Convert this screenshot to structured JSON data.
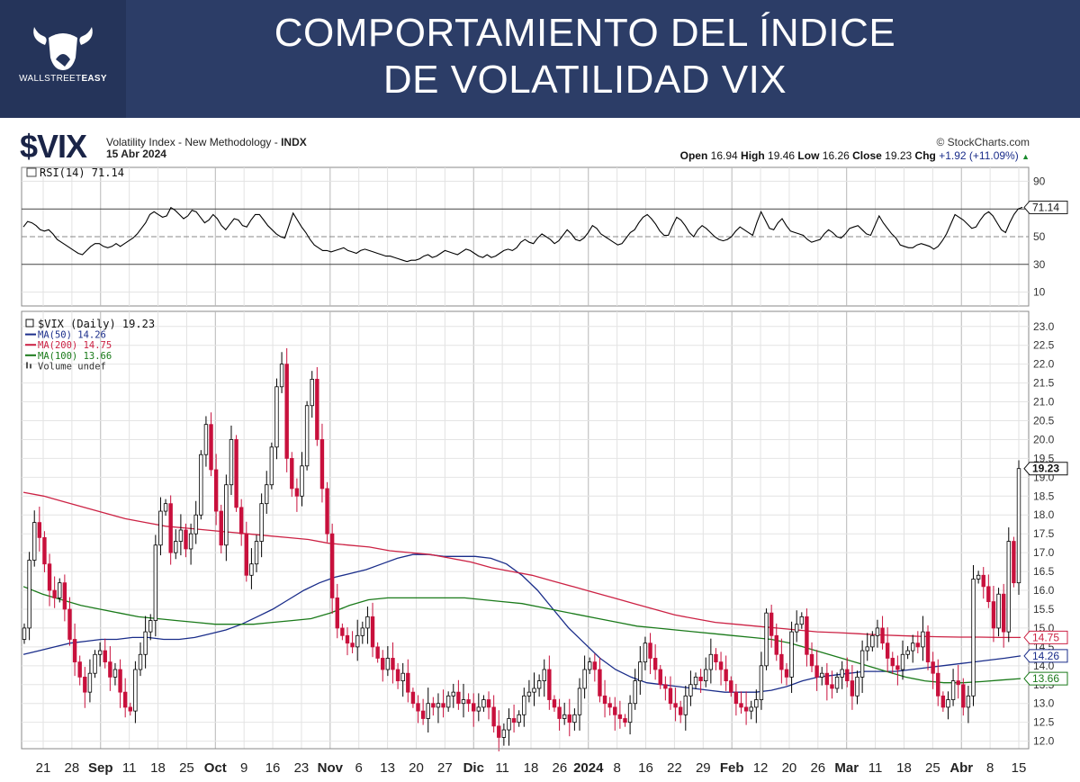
{
  "header": {
    "brand_text": "WALLSTREET",
    "brand_text_bold": "EASY",
    "title_line1": "COMPORTAMIENTO DEL ÍNDICE",
    "title_line2": "DE VOLATILIDAD VIX"
  },
  "chart_header": {
    "symbol": "$VIX",
    "description": "Volatility Index - New Methodology - ",
    "exchange": "INDX",
    "date": "15 Abr 2024",
    "credit": "© StockCharts.com",
    "open_label": "Open",
    "open": "16.94",
    "high_label": "High",
    "high": "19.46",
    "low_label": "Low",
    "low": "16.26",
    "close_label": "Close",
    "close": "19.23",
    "chg_label": "Chg",
    "chg": "+1.92 (+11.09%)"
  },
  "colors": {
    "banner": "#2c3d67",
    "up_candle": "#ffffff",
    "down_candle": "#c8103c",
    "ma50": "#1a2d8a",
    "ma200": "#cc2244",
    "ma100": "#1a7a1a",
    "rsi": "#000000"
  },
  "chart_data": [
    {
      "type": "line",
      "panel": "RSI",
      "legend": "RSI(14) 71.14",
      "ylim": [
        0,
        100
      ],
      "y_ticks": [
        10,
        30,
        50,
        70,
        90
      ],
      "current_label": "71.14",
      "values": [
        57,
        61,
        60,
        58,
        55,
        54,
        55,
        52,
        48,
        46,
        44,
        42,
        40,
        38,
        37,
        40,
        43,
        45,
        45,
        43,
        42,
        43,
        45,
        43,
        45,
        47,
        49,
        52,
        56,
        60,
        66,
        68,
        66,
        64,
        65,
        71,
        69,
        66,
        63,
        65,
        69,
        68,
        64,
        60,
        62,
        66,
        63,
        58,
        55,
        59,
        63,
        62,
        58,
        57,
        62,
        66,
        66,
        62,
        58,
        55,
        52,
        50,
        49,
        58,
        67,
        62,
        57,
        53,
        48,
        44,
        42,
        40,
        40,
        39,
        40,
        41,
        42,
        40,
        39,
        38,
        40,
        41,
        40,
        39,
        38,
        37,
        36,
        36,
        35,
        34,
        33,
        32,
        33,
        33,
        34,
        36,
        37,
        35,
        36,
        38,
        40,
        39,
        38,
        37,
        39,
        41,
        40,
        38,
        36,
        35,
        37,
        35,
        36,
        38,
        40,
        41,
        40,
        42,
        46,
        48,
        46,
        45,
        49,
        52,
        50,
        48,
        45,
        47,
        51,
        55,
        52,
        48,
        47,
        49,
        53,
        58,
        56,
        52,
        50,
        48,
        46,
        44,
        45,
        49,
        53,
        55,
        60,
        64,
        66,
        63,
        59,
        54,
        51,
        51,
        58,
        64,
        62,
        58,
        53,
        50,
        55,
        58,
        56,
        53,
        50,
        48,
        47,
        48,
        50,
        54,
        57,
        55,
        53,
        51,
        60,
        68,
        62,
        56,
        55,
        60,
        63,
        58,
        54,
        53,
        52,
        51,
        48,
        46,
        47,
        48,
        52,
        55,
        53,
        50,
        49,
        52,
        56,
        57,
        58,
        55,
        52,
        51,
        58,
        65,
        60,
        56,
        52,
        49,
        44,
        43,
        42,
        42,
        44,
        45,
        44,
        43,
        41,
        43,
        47,
        52,
        59,
        66,
        64,
        62,
        59,
        56,
        57,
        62,
        66,
        68,
        65,
        60,
        55,
        53,
        60,
        66,
        70,
        71.14
      ]
    },
    {
      "type": "candlestick",
      "panel": "price",
      "legend": "$VIX (Daily) 19.23",
      "ylim": [
        11.8,
        23.4
      ],
      "y_ticks": [
        12.0,
        12.5,
        13.0,
        13.5,
        14.0,
        14.5,
        15.0,
        15.5,
        16.0,
        16.5,
        17.0,
        17.5,
        18.0,
        18.5,
        19.0,
        19.5,
        20.0,
        20.5,
        21.0,
        21.5,
        22.0,
        22.5,
        23.0
      ],
      "x_labels": [
        "21",
        "28",
        "Sep",
        "11",
        "18",
        "25",
        "Oct",
        "9",
        "16",
        "23",
        "Nov",
        "6",
        "13",
        "20",
        "27",
        "Dic",
        "11",
        "18",
        "26",
        "2024",
        "8",
        "16",
        "22",
        "29",
        "Feb",
        "12",
        "20",
        "26",
        "Mar",
        "11",
        "18",
        "25",
        "Abr",
        "8",
        "15"
      ],
      "x_label_bold": [
        "Sep",
        "Oct",
        "Nov",
        "Dic",
        "2024",
        "Feb",
        "Mar",
        "Abr"
      ],
      "close": [
        15.0,
        16.8,
        17.8,
        17.4,
        16.7,
        16.0,
        15.8,
        16.2,
        15.5,
        14.7,
        14.1,
        13.7,
        13.3,
        13.8,
        14.3,
        14.4,
        14.1,
        13.7,
        13.9,
        13.3,
        12.9,
        12.8,
        13.9,
        14.3,
        14.9,
        15.2,
        17.2,
        18.1,
        18.3,
        17.0,
        17.3,
        17.6,
        17.1,
        17.5,
        18.0,
        19.6,
        20.4,
        19.2,
        18.1,
        17.2,
        18.8,
        20.0,
        18.2,
        17.5,
        16.4,
        16.7,
        17.3,
        18.3,
        18.8,
        19.8,
        21.4,
        22.0,
        19.5,
        18.7,
        18.5,
        19.3,
        20.9,
        21.6,
        20.0,
        18.7,
        17.5,
        15.8,
        15.0,
        14.8,
        14.6,
        14.5,
        14.8,
        15.0,
        15.3,
        14.5,
        14.2,
        13.9,
        14.2,
        13.9,
        13.6,
        13.8,
        13.3,
        13.0,
        12.8,
        12.6,
        13.0,
        12.9,
        13.0,
        12.9,
        13.2,
        13.3,
        13.0,
        13.1,
        13.0,
        12.8,
        12.9,
        13.1,
        12.9,
        12.4,
        12.1,
        12.3,
        12.6,
        12.5,
        12.7,
        13.2,
        13.3,
        13.4,
        13.6,
        13.9,
        13.1,
        12.9,
        12.6,
        12.7,
        12.5,
        12.7,
        13.4,
        13.9,
        14.1,
        13.9,
        13.2,
        13.0,
        12.9,
        12.7,
        12.6,
        12.5,
        13.0,
        13.6,
        14.1,
        14.6,
        14.2,
        13.9,
        13.5,
        13.4,
        13.0,
        12.9,
        12.7,
        13.2,
        13.5,
        13.7,
        13.6,
        13.9,
        14.3,
        14.1,
        13.9,
        13.6,
        13.3,
        13.0,
        12.9,
        12.8,
        12.9,
        13.1,
        14.0,
        15.4,
        14.8,
        14.3,
        13.9,
        13.7,
        14.9,
        15.1,
        15.3,
        14.3,
        14.0,
        13.7,
        13.8,
        13.5,
        13.4,
        13.7,
        13.9,
        13.6,
        13.2,
        13.7,
        14.4,
        14.5,
        14.8,
        15.0,
        14.6,
        14.2,
        14.0,
        13.9,
        14.3,
        14.4,
        14.6,
        14.5,
        14.9,
        14.1,
        13.8,
        13.2,
        12.9,
        13.1,
        13.6,
        13.5,
        12.9,
        13.2,
        16.3,
        16.4,
        16.1,
        15.7,
        15.0,
        15.9,
        14.9,
        17.3,
        16.2,
        19.23
      ]
    },
    {
      "type": "line",
      "panel": "price",
      "series": [
        {
          "name": "MA(50) 14.26",
          "key": "ma50",
          "values": [
            14.3,
            14.4,
            14.5,
            14.6,
            14.65,
            14.7,
            14.7,
            14.75,
            14.75,
            14.7,
            14.7,
            14.75,
            14.85,
            14.95,
            15.1,
            15.3,
            15.5,
            15.75,
            16.0,
            16.2,
            16.35,
            16.45,
            16.55,
            16.7,
            16.85,
            16.95,
            16.95,
            16.9,
            16.9,
            16.9,
            16.85,
            16.7,
            16.4,
            16.0,
            15.5,
            15.0,
            14.6,
            14.2,
            13.9,
            13.7,
            13.55,
            13.5,
            13.45,
            13.4,
            13.35,
            13.3,
            13.3,
            13.3,
            13.35,
            13.45,
            13.6,
            13.7,
            13.75,
            13.8,
            13.85,
            13.85,
            13.85,
            13.9,
            13.95,
            14.0,
            14.05,
            14.1,
            14.15,
            14.2,
            14.26
          ]
        },
        {
          "name": "MA(200) 14.75",
          "key": "ma200",
          "values": [
            18.6,
            18.5,
            18.35,
            18.2,
            18.05,
            17.9,
            17.8,
            17.7,
            17.65,
            17.6,
            17.55,
            17.5,
            17.45,
            17.4,
            17.35,
            17.25,
            17.2,
            17.15,
            17.05,
            17.0,
            16.95,
            16.85,
            16.75,
            16.6,
            16.5,
            16.4,
            16.25,
            16.1,
            15.95,
            15.8,
            15.65,
            15.5,
            15.35,
            15.25,
            15.15,
            15.1,
            15.05,
            15.0,
            14.95,
            14.9,
            14.88,
            14.85,
            14.82,
            14.8,
            14.78,
            14.77,
            14.76,
            14.76,
            14.75,
            14.75
          ]
        },
        {
          "name": "MA(100) 13.66",
          "key": "ma100",
          "values": [
            16.1,
            15.9,
            15.75,
            15.6,
            15.5,
            15.4,
            15.3,
            15.25,
            15.2,
            15.15,
            15.1,
            15.1,
            15.1,
            15.15,
            15.2,
            15.25,
            15.4,
            15.6,
            15.75,
            15.8,
            15.8,
            15.8,
            15.8,
            15.8,
            15.75,
            15.7,
            15.65,
            15.55,
            15.45,
            15.35,
            15.25,
            15.15,
            15.05,
            15.0,
            14.95,
            14.9,
            14.85,
            14.8,
            14.75,
            14.7,
            14.6,
            14.45,
            14.3,
            14.15,
            14.0,
            13.85,
            13.7,
            13.6,
            13.55,
            13.55,
            13.58,
            13.62,
            13.66
          ]
        }
      ],
      "current_labels": {
        "ma200": "14.75",
        "ma50": "14.26",
        "ma100": "13.66",
        "close": "19.23"
      }
    }
  ],
  "legend": {
    "vix": "$VIX (Daily) 19.23",
    "ma50": "MA(50) 14.26",
    "ma200": "MA(200) 14.75",
    "ma100": "MA(100) 13.66",
    "volume": "Volume undef"
  }
}
